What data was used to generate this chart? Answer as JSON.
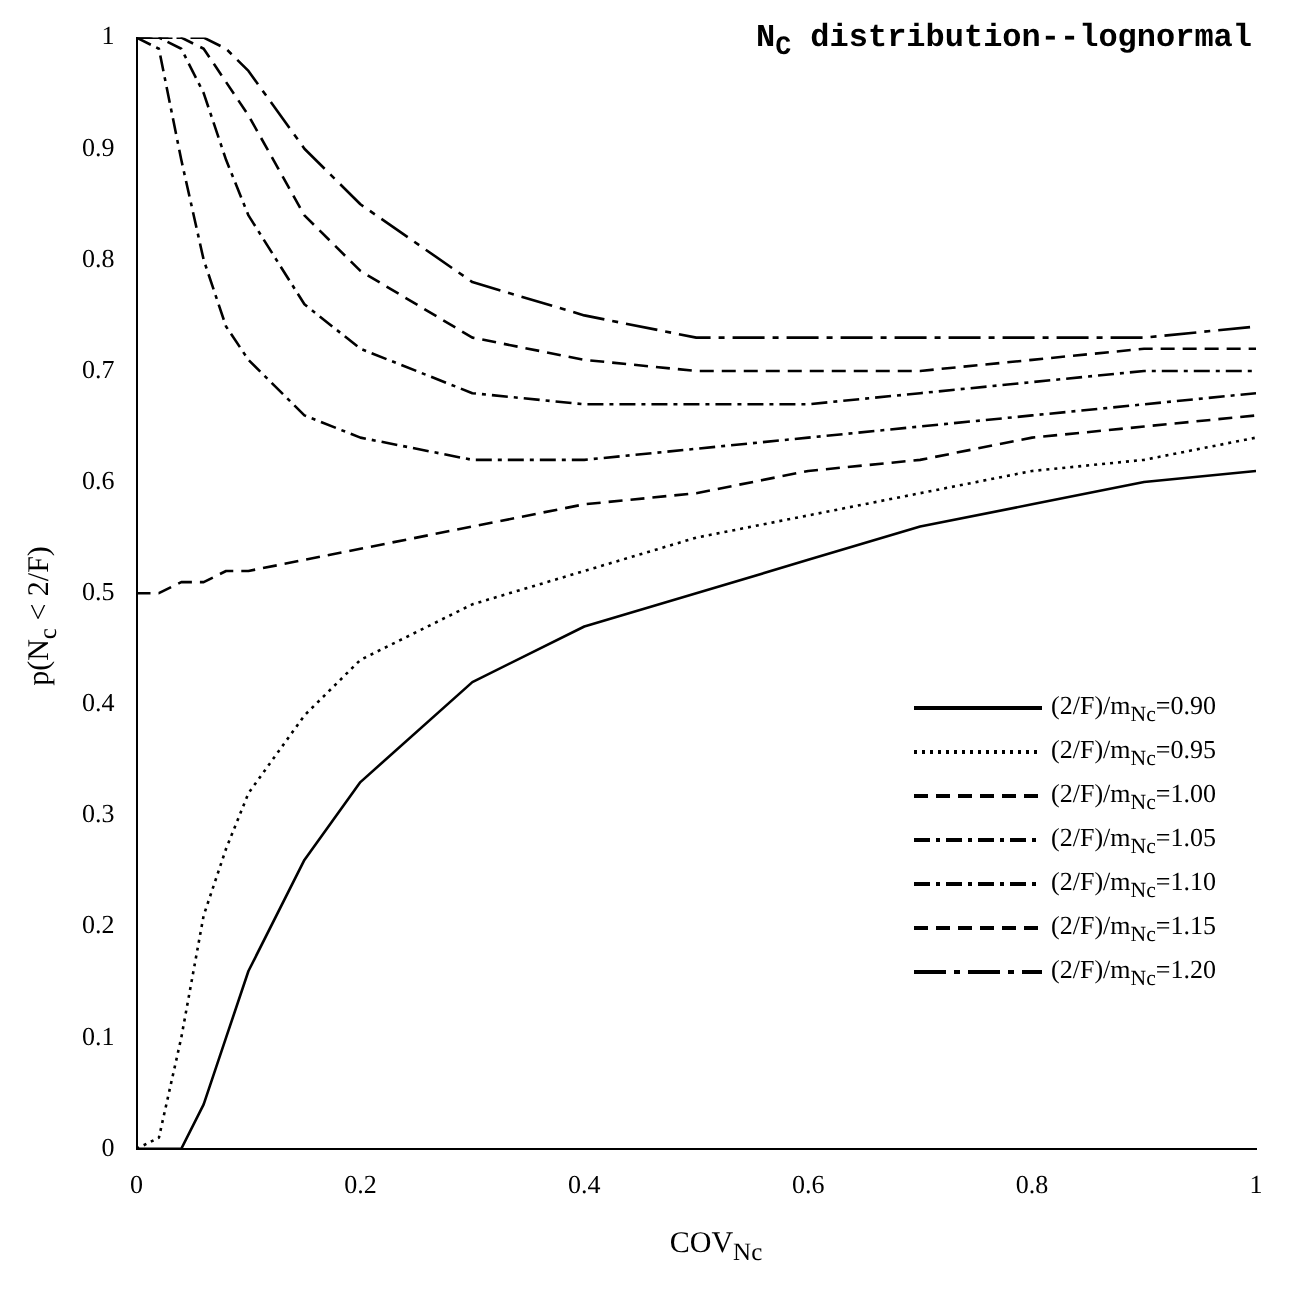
{
  "chart_data": {
    "type": "line",
    "title": "N$_{C}$ distribution--lognormal",
    "xlabel": "COV$_{Nc}$",
    "ylabel": "p(N$_{c}$ < 2/F)",
    "x": [
      0,
      0.02,
      0.04,
      0.06,
      0.08,
      0.1,
      0.15,
      0.2,
      0.3,
      0.4,
      0.5,
      0.6,
      0.7,
      0.8,
      0.9,
      1.0
    ],
    "series": [
      {
        "name": "(2/F)/m$_{Nc}$=0.90",
        "color": "#000000",
        "line_style": "solid",
        "values": [
          0,
          0,
          0,
          0.04,
          0.1,
          0.16,
          0.26,
          0.33,
          0.42,
          0.47,
          0.5,
          0.53,
          0.56,
          0.58,
          0.6,
          0.61
        ]
      },
      {
        "name": "(2/F)/m$_{Nc}$=0.95",
        "color": "#000000",
        "line_style": "dotted",
        "values": [
          0,
          0.01,
          0.1,
          0.21,
          0.27,
          0.32,
          0.39,
          0.44,
          0.49,
          0.52,
          0.55,
          0.57,
          0.59,
          0.61,
          0.62,
          0.64
        ]
      },
      {
        "name": "(2/F)/m$_{Nc}$=1.00",
        "color": "#000000",
        "line_style": "dashed",
        "values": [
          0.5,
          0.5,
          0.51,
          0.51,
          0.52,
          0.52,
          0.53,
          0.54,
          0.56,
          0.58,
          0.59,
          0.61,
          0.62,
          0.64,
          0.65,
          0.66
        ]
      },
      {
        "name": "(2/F)/m$_{Nc}$=1.05",
        "color": "#000000",
        "line_style": "dashdot",
        "values": [
          1,
          0.99,
          0.89,
          0.8,
          0.74,
          0.71,
          0.66,
          0.64,
          0.62,
          0.62,
          0.63,
          0.64,
          0.65,
          0.66,
          0.67,
          0.68
        ]
      },
      {
        "name": "(2/F)/m$_{Nc}$=1.10",
        "color": "#000000",
        "line_style": "dashdot",
        "values": [
          1,
          1,
          0.99,
          0.95,
          0.89,
          0.84,
          0.76,
          0.72,
          0.68,
          0.67,
          0.67,
          0.67,
          0.68,
          0.69,
          0.7,
          0.7
        ]
      },
      {
        "name": "(2/F)/m$_{Nc}$=1.15",
        "color": "#000000",
        "line_style": "dashed",
        "values": [
          1,
          1,
          1,
          0.99,
          0.96,
          0.93,
          0.84,
          0.79,
          0.73,
          0.71,
          0.7,
          0.7,
          0.7,
          0.71,
          0.72,
          0.72
        ]
      },
      {
        "name": "(2/F)/m$_{Nc}$=1.20",
        "color": "#000000",
        "line_style": "longdashdot",
        "values": [
          1,
          1,
          1,
          1,
          0.99,
          0.97,
          0.9,
          0.85,
          0.78,
          0.75,
          0.73,
          0.73,
          0.73,
          0.73,
          0.73,
          0.74
        ]
      }
    ],
    "xlim": [
      0,
      1
    ],
    "xticks": [
      0,
      0.2,
      0.4,
      0.6,
      0.8,
      1
    ],
    "ylim": [
      0,
      1
    ],
    "yticks": [
      0,
      0.1,
      0.2,
      0.3,
      0.4,
      0.5,
      0.6,
      0.7,
      0.8,
      0.9,
      1
    ],
    "legend": "bottom right"
  }
}
